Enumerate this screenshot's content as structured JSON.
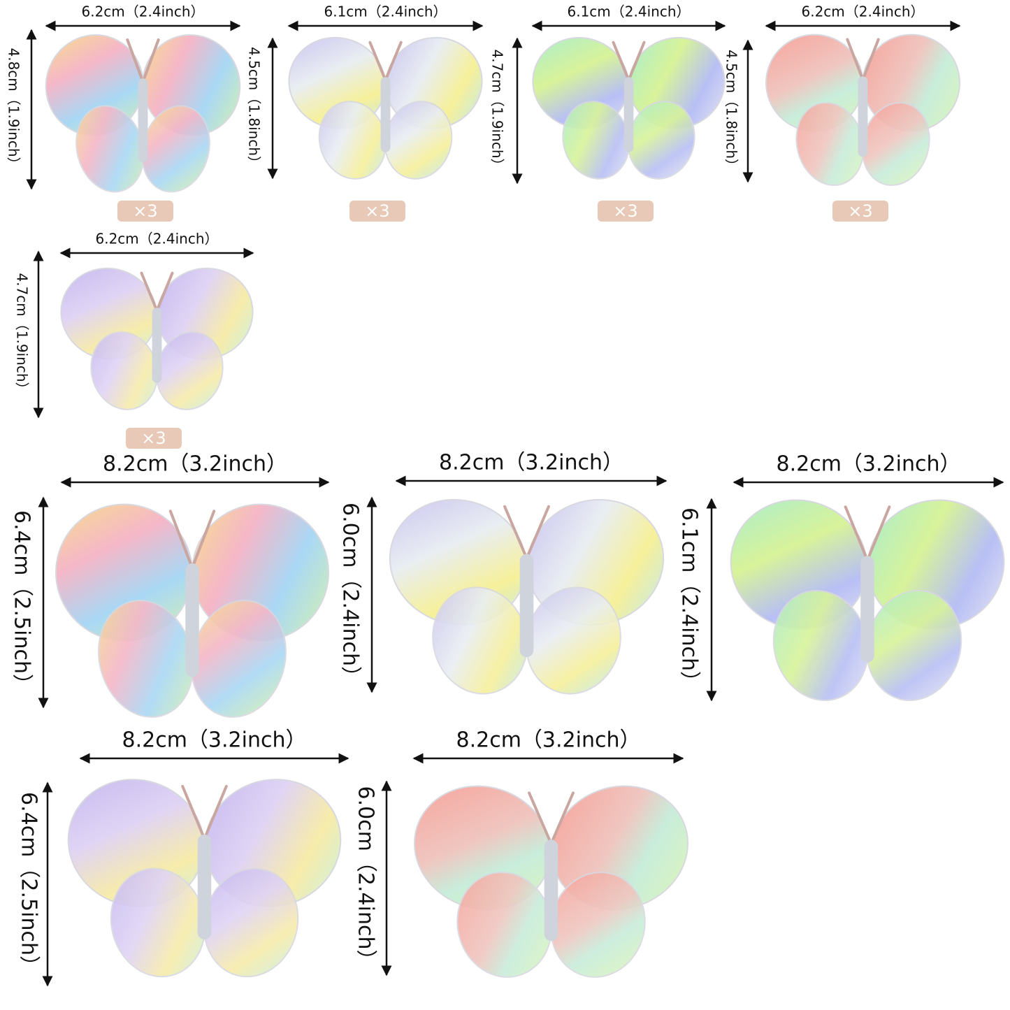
{
  "small_items": [
    {
      "width": "6.2cm（2.4inch）",
      "height": "4.8cm（1.9inch）",
      "quantity": "×3"
    },
    {
      "width": "6.1cm（2.4inch）",
      "height": "4.5cm（1.8inch）",
      "quantity": "×3"
    },
    {
      "width": "6.1cm（2.4inch）",
      "height": "4.7cm（1.9inch）",
      "quantity": "×3"
    },
    {
      "width": "6.2cm（2.4inch）",
      "height": "4.5cm（1.8inch）",
      "quantity": "×3"
    },
    {
      "width": "6.2cm（2.4inch）",
      "height": "4.7cm（1.9inch）",
      "quantity": "×3"
    }
  ],
  "large_items": [
    {
      "width": "8.2cm（3.2inch）",
      "height": "6.4cm（2.5inch）"
    },
    {
      "width": "8.2cm（3.2inch）",
      "height": "6.0cm（2.4inch）"
    },
    {
      "width": "8.2cm（3.2inch）",
      "height": "6.1cm（2.4inch）"
    },
    {
      "width": "8.2cm（3.2inch）",
      "height": "6.4cm（2.5inch）"
    },
    {
      "width": "8.2cm（3.2inch）",
      "height": "6.0cm（2.4inch）"
    }
  ]
}
